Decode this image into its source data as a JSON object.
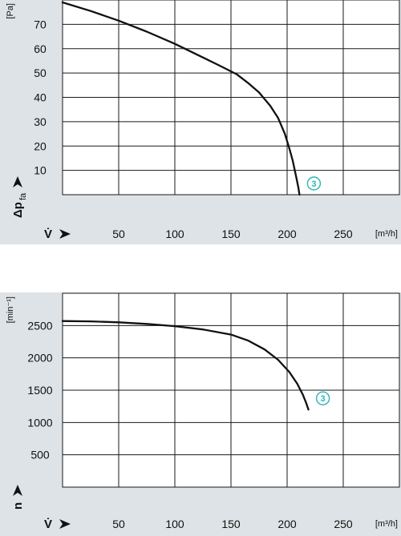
{
  "colors": {
    "panel_background": "#dde3e6",
    "plot_background": "#ffffff",
    "grid": "#1a1a1a",
    "curve": "#111111",
    "curve_label": "#2bb5b8"
  },
  "chart_data": [
    {
      "type": "line",
      "ylabel_symbol": "Δp",
      "ylabel_subscript": "fa",
      "y_unit": "[Pa]",
      "xlabel_symbol": "V̇",
      "x_unit": "[m³/h]",
      "xlim": [
        0,
        300
      ],
      "ylim": [
        0,
        80
      ],
      "x_ticks": [
        50,
        100,
        150,
        200,
        250
      ],
      "y_ticks": [
        10,
        20,
        30,
        40,
        50,
        60,
        70
      ],
      "x_tick_labels": [
        "50",
        "100",
        "150",
        "200",
        "250"
      ],
      "y_tick_labels": [
        "10",
        "20",
        "30",
        "40",
        "50",
        "60",
        "70"
      ],
      "grid": true,
      "series": [
        {
          "name": "3",
          "x": [
            0,
            25,
            50,
            75,
            100,
            120,
            140,
            155,
            165,
            175,
            185,
            192,
            198,
            202,
            205,
            208,
            210,
            211
          ],
          "y": [
            79,
            75.5,
            71.5,
            67,
            62,
            57.5,
            53,
            49.5,
            46,
            42,
            36.5,
            31.5,
            25,
            19,
            14,
            7.5,
            3,
            0
          ]
        }
      ]
    },
    {
      "type": "line",
      "ylabel_symbol": "n",
      "y_unit": "[min⁻¹]",
      "xlabel_symbol": "V̇",
      "x_unit": "[m³/h]",
      "xlim": [
        0,
        300
      ],
      "ylim": [
        0,
        3000
      ],
      "x_ticks": [
        50,
        100,
        150,
        200,
        250
      ],
      "y_ticks": [
        500,
        1000,
        1500,
        2000,
        2500
      ],
      "x_tick_labels": [
        "50",
        "100",
        "150",
        "200",
        "250"
      ],
      "y_tick_labels": [
        "500",
        "1000",
        "1500",
        "2000",
        "2500"
      ],
      "grid": true,
      "series": [
        {
          "name": "3",
          "x": [
            0,
            25,
            50,
            75,
            100,
            125,
            150,
            165,
            180,
            192,
            202,
            209,
            214,
            217,
            219
          ],
          "y": [
            2570,
            2565,
            2550,
            2525,
            2490,
            2440,
            2360,
            2270,
            2130,
            1970,
            1780,
            1600,
            1430,
            1300,
            1200
          ]
        }
      ]
    }
  ]
}
